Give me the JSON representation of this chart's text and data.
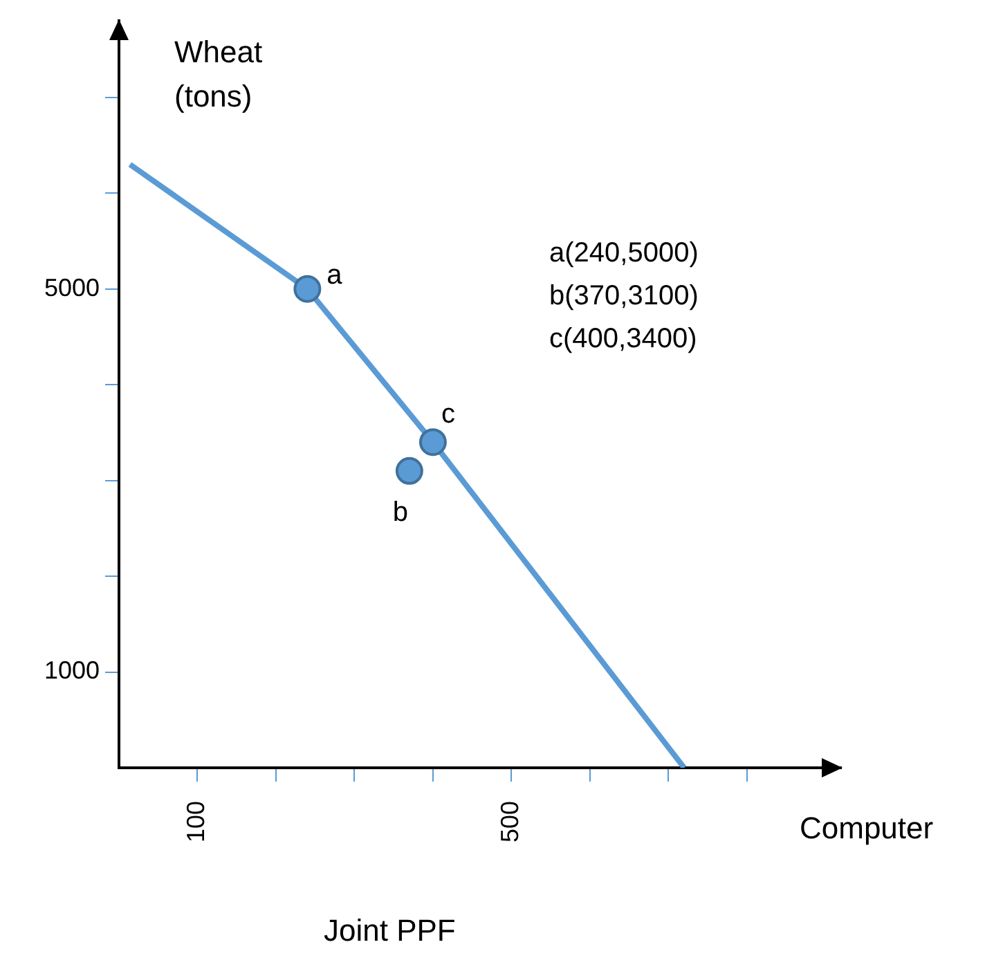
{
  "chart_data": {
    "type": "line",
    "title": "Joint PPF",
    "xlabel": "Computer",
    "ylabel": "Wheat (tons)",
    "xlim": [
      0,
      920
    ],
    "ylim": [
      0,
      7800
    ],
    "xticks": [
      {
        "value": 100,
        "label": "100"
      },
      {
        "value": 200,
        "label": null
      },
      {
        "value": 300,
        "label": null
      },
      {
        "value": 400,
        "label": null
      },
      {
        "value": 500,
        "label": "500"
      },
      {
        "value": 600,
        "label": null
      },
      {
        "value": 700,
        "label": null
      },
      {
        "value": 800,
        "label": null
      }
    ],
    "yticks": [
      {
        "value": 1000,
        "label": "1000"
      },
      {
        "value": 2000,
        "label": null
      },
      {
        "value": 3000,
        "label": null
      },
      {
        "value": 4000,
        "label": null
      },
      {
        "value": 5000,
        "label": "5000"
      },
      {
        "value": 6000,
        "label": null
      },
      {
        "value": 7000,
        "label": null
      }
    ],
    "grid": false,
    "legend": false,
    "series": [
      {
        "color": "#5b9bd5",
        "marker": "none",
        "x": [
          14,
          240,
          400,
          720
        ],
        "values": [
          6300,
          5000,
          3400,
          0
        ]
      },
      {
        "type": "scatter",
        "color": "#5b9bd5",
        "marker": "circle",
        "x": [
          240,
          370,
          400
        ],
        "values": [
          5000,
          3100,
          3400
        ]
      }
    ],
    "annotations": [
      {
        "text": "a",
        "x": 240,
        "y": 5000
      },
      {
        "text": "b",
        "x": 370,
        "y": 3100
      },
      {
        "text": "c",
        "x": 400,
        "y": 3400
      },
      "a(240,5000)",
      "b(370,3100)",
      "c(400,3400)"
    ]
  }
}
